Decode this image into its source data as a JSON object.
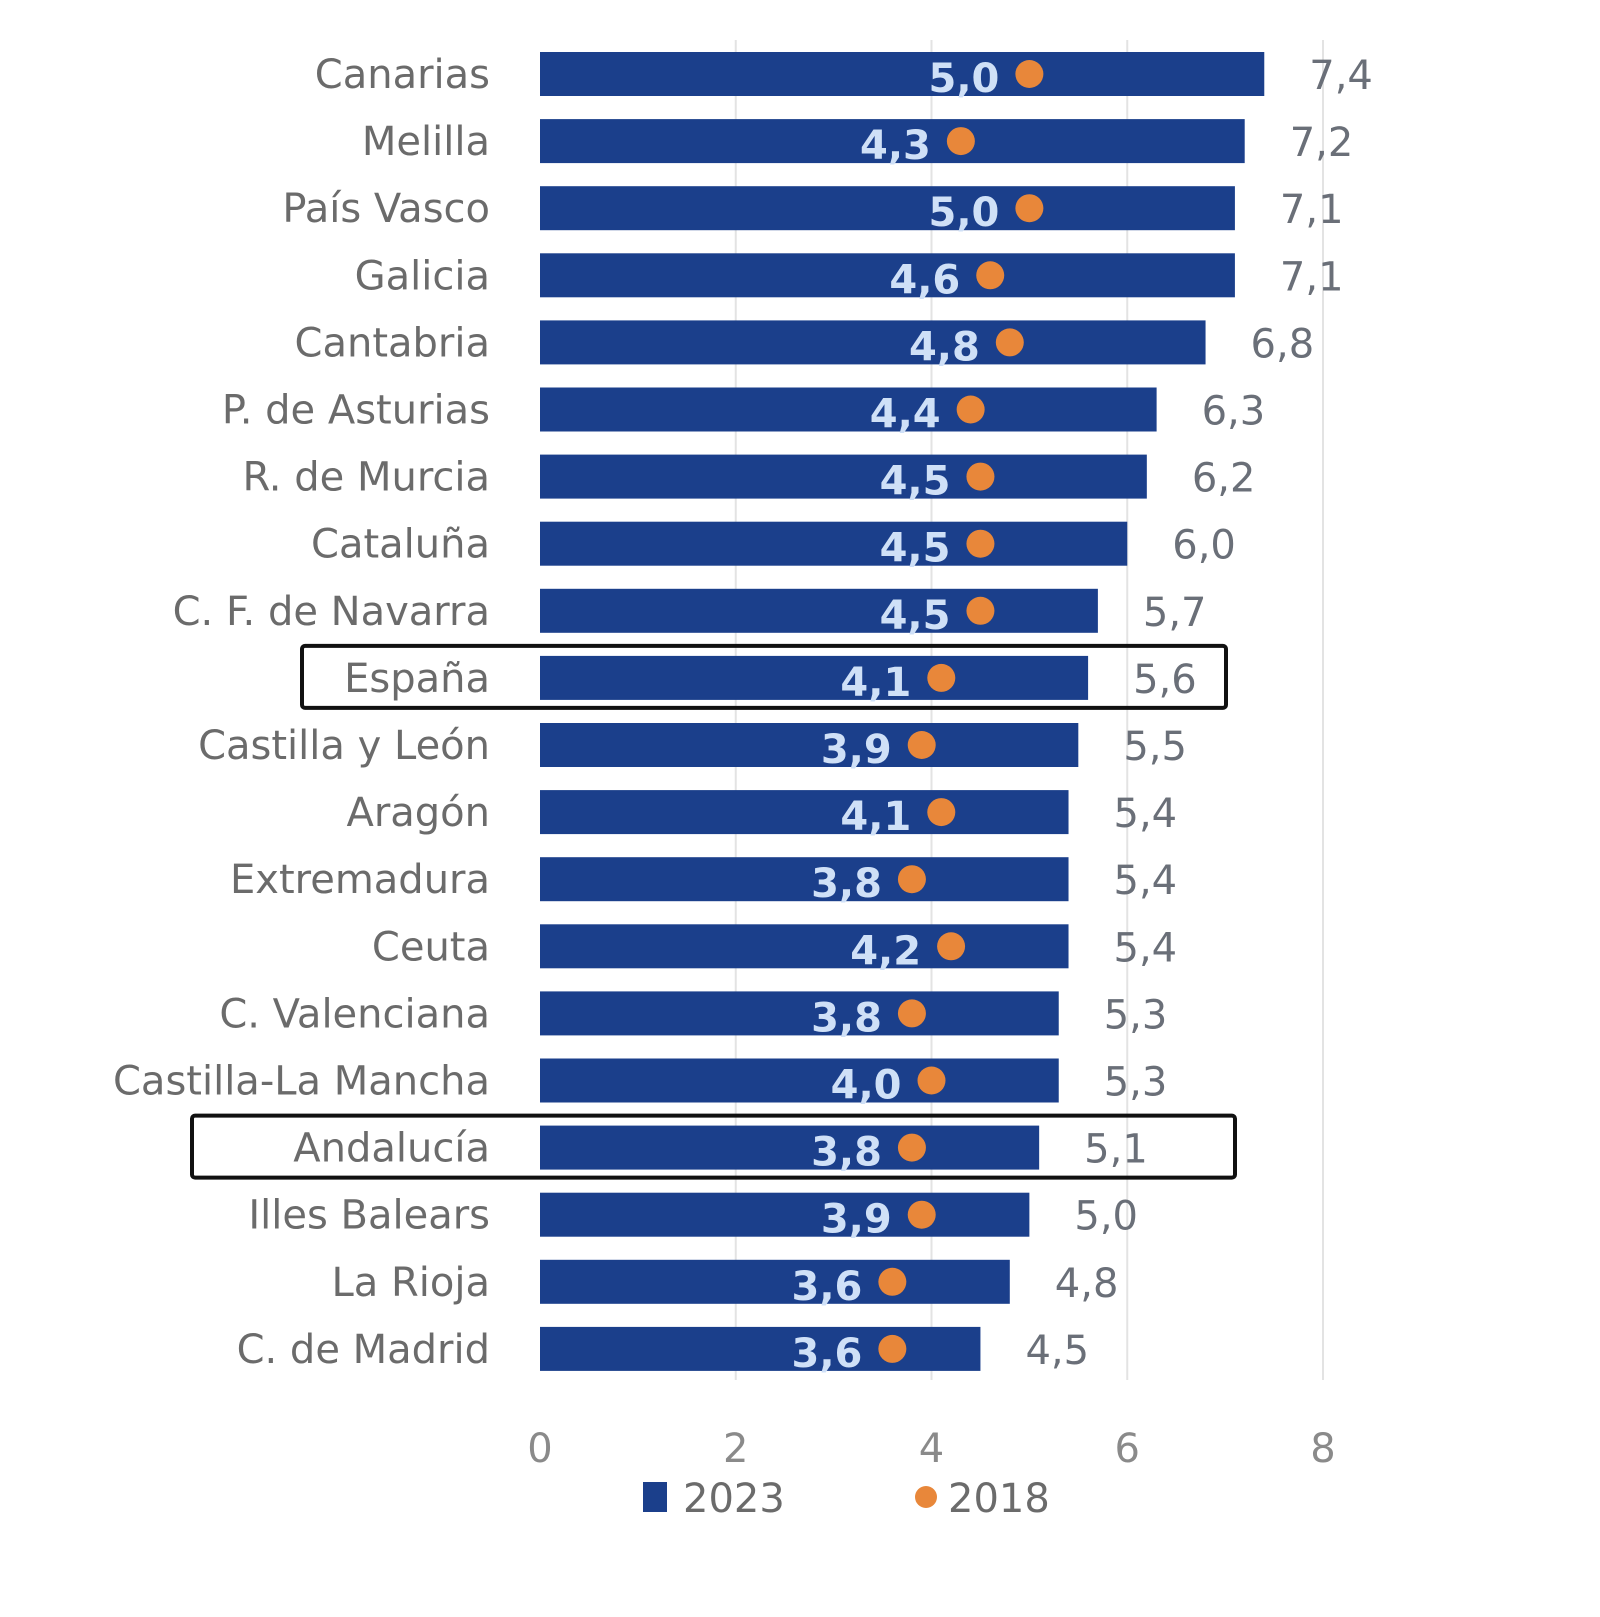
{
  "chart_data": {
    "type": "bar",
    "orientation": "horizontal",
    "categories": [
      "Canarias",
      "Melilla",
      "País Vasco",
      "Galicia",
      "Cantabria",
      "P. de Asturias",
      "R. de Murcia",
      "Cataluña",
      "C. F. de Navarra",
      "España",
      "Castilla y León",
      "Aragón",
      "Extremadura",
      "Ceuta",
      "C. Valenciana",
      "Castilla-La Mancha",
      "Andalucía",
      "Illes Balears",
      "La Rioja",
      "C. de Madrid"
    ],
    "series": [
      {
        "name": "2023",
        "type": "bar",
        "color": "#1B3F8B",
        "values": [
          7.4,
          7.2,
          7.1,
          7.1,
          6.8,
          6.3,
          6.2,
          6.0,
          5.7,
          5.6,
          5.5,
          5.4,
          5.4,
          5.4,
          5.3,
          5.3,
          5.1,
          5.0,
          4.8,
          4.5
        ],
        "labels": [
          "7,4",
          "7,2",
          "7,1",
          "7,1",
          "6,8",
          "6,3",
          "6,2",
          "6,0",
          "5,7",
          "5,6",
          "5,5",
          "5,4",
          "5,4",
          "5,4",
          "5,3",
          "5,3",
          "5,1",
          "5,0",
          "4,8",
          "4,5"
        ]
      },
      {
        "name": "2018",
        "type": "dot",
        "color": "#E8873A",
        "values": [
          5.0,
          4.3,
          5.0,
          4.6,
          4.8,
          4.4,
          4.5,
          4.5,
          4.5,
          4.1,
          3.9,
          4.1,
          3.8,
          4.2,
          3.8,
          4.0,
          3.8,
          3.9,
          3.6,
          3.6
        ],
        "labels": [
          "5,0",
          "4,3",
          "5,0",
          "4,6",
          "4,8",
          "4,4",
          "4,5",
          "4,5",
          "4,5",
          "4,1",
          "3,9",
          "4,1",
          "3,8",
          "4,2",
          "3,8",
          "4,0",
          "3,8",
          "3,9",
          "3,6",
          "3,6"
        ]
      }
    ],
    "highlighted": [
      "España",
      "Andalucía"
    ],
    "xlim": [
      0,
      8
    ],
    "xticks": [
      "0",
      "2",
      "4",
      "6",
      "8"
    ],
    "grid": "vertical",
    "legend": "bottom",
    "legend_entries": [
      "2023",
      "2018"
    ],
    "title": "",
    "xlabel": "",
    "ylabel": ""
  }
}
